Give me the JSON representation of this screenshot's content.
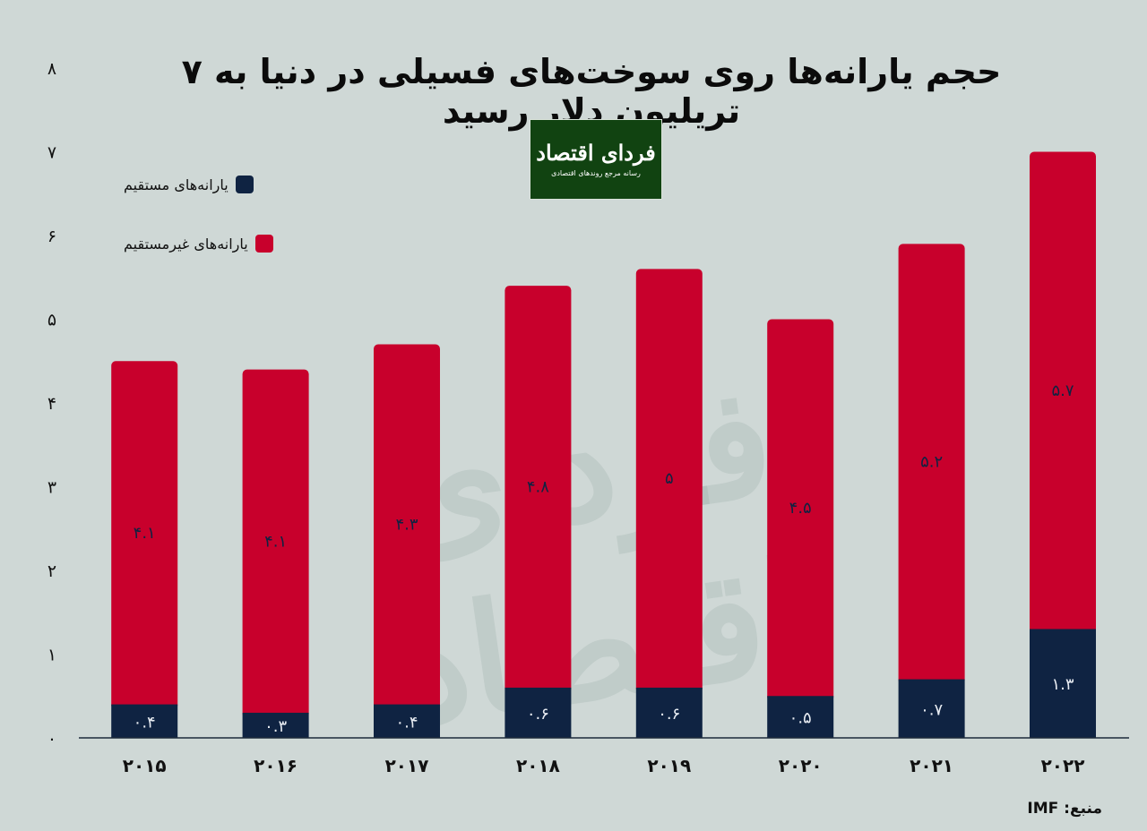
{
  "title": "حجم یارانه‌ها روی سوخت‌های فسیلی در دنیا به ۷ تریلیون دلار رسید",
  "logo": {
    "name": "فردای اقتصاد",
    "subtitle": "رسانه مرجع روندهای اقتصادی"
  },
  "watermark": "فردای اقتصاد",
  "source": "منبع: IMF",
  "colors": {
    "background": "#cfd8d6",
    "direct": "#0f2342",
    "indirect": "#c8002c"
  },
  "chart_data": {
    "type": "bar",
    "stacked": true,
    "title": "حجم یارانه‌ها روی سوخت‌های فسیلی در دنیا به ۷ تریلیون دلار رسید",
    "categories": [
      "۲۰۱۵",
      "۲۰۱۶",
      "۲۰۱۷",
      "۲۰۱۸",
      "۲۰۱۹",
      "۲۰۲۰",
      "۲۰۲۱",
      "۲۰۲۲"
    ],
    "ylim": [
      0,
      8
    ],
    "yticks": [
      0,
      1,
      2,
      3,
      4,
      5,
      6,
      7,
      8
    ],
    "ytick_labels": [
      "۰",
      "۱",
      "۲",
      "۳",
      "۴",
      "۵",
      "۶",
      "۷",
      "۸"
    ],
    "legend_position": "top-left",
    "series": [
      {
        "name": "یارانه‌های مستقیم",
        "color": "#0f2342",
        "values": [
          0.4,
          0.3,
          0.4,
          0.6,
          0.6,
          0.5,
          0.7,
          1.3
        ],
        "labels": [
          "۰.۴",
          "۰.۳",
          "۰.۴",
          "۰.۶",
          "۰.۶",
          "۰.۵",
          "۰.۷",
          "۱.۳"
        ]
      },
      {
        "name": "یارانه‌های غیرمستقیم",
        "color": "#c8002c",
        "values": [
          4.1,
          4.1,
          4.3,
          4.8,
          5,
          4.5,
          5.2,
          5.7
        ],
        "labels": [
          "۴.۱",
          "۴.۱",
          "۴.۳",
          "۴.۸",
          "۵",
          "۴.۵",
          "۵.۲",
          "۵.۷"
        ]
      }
    ]
  }
}
